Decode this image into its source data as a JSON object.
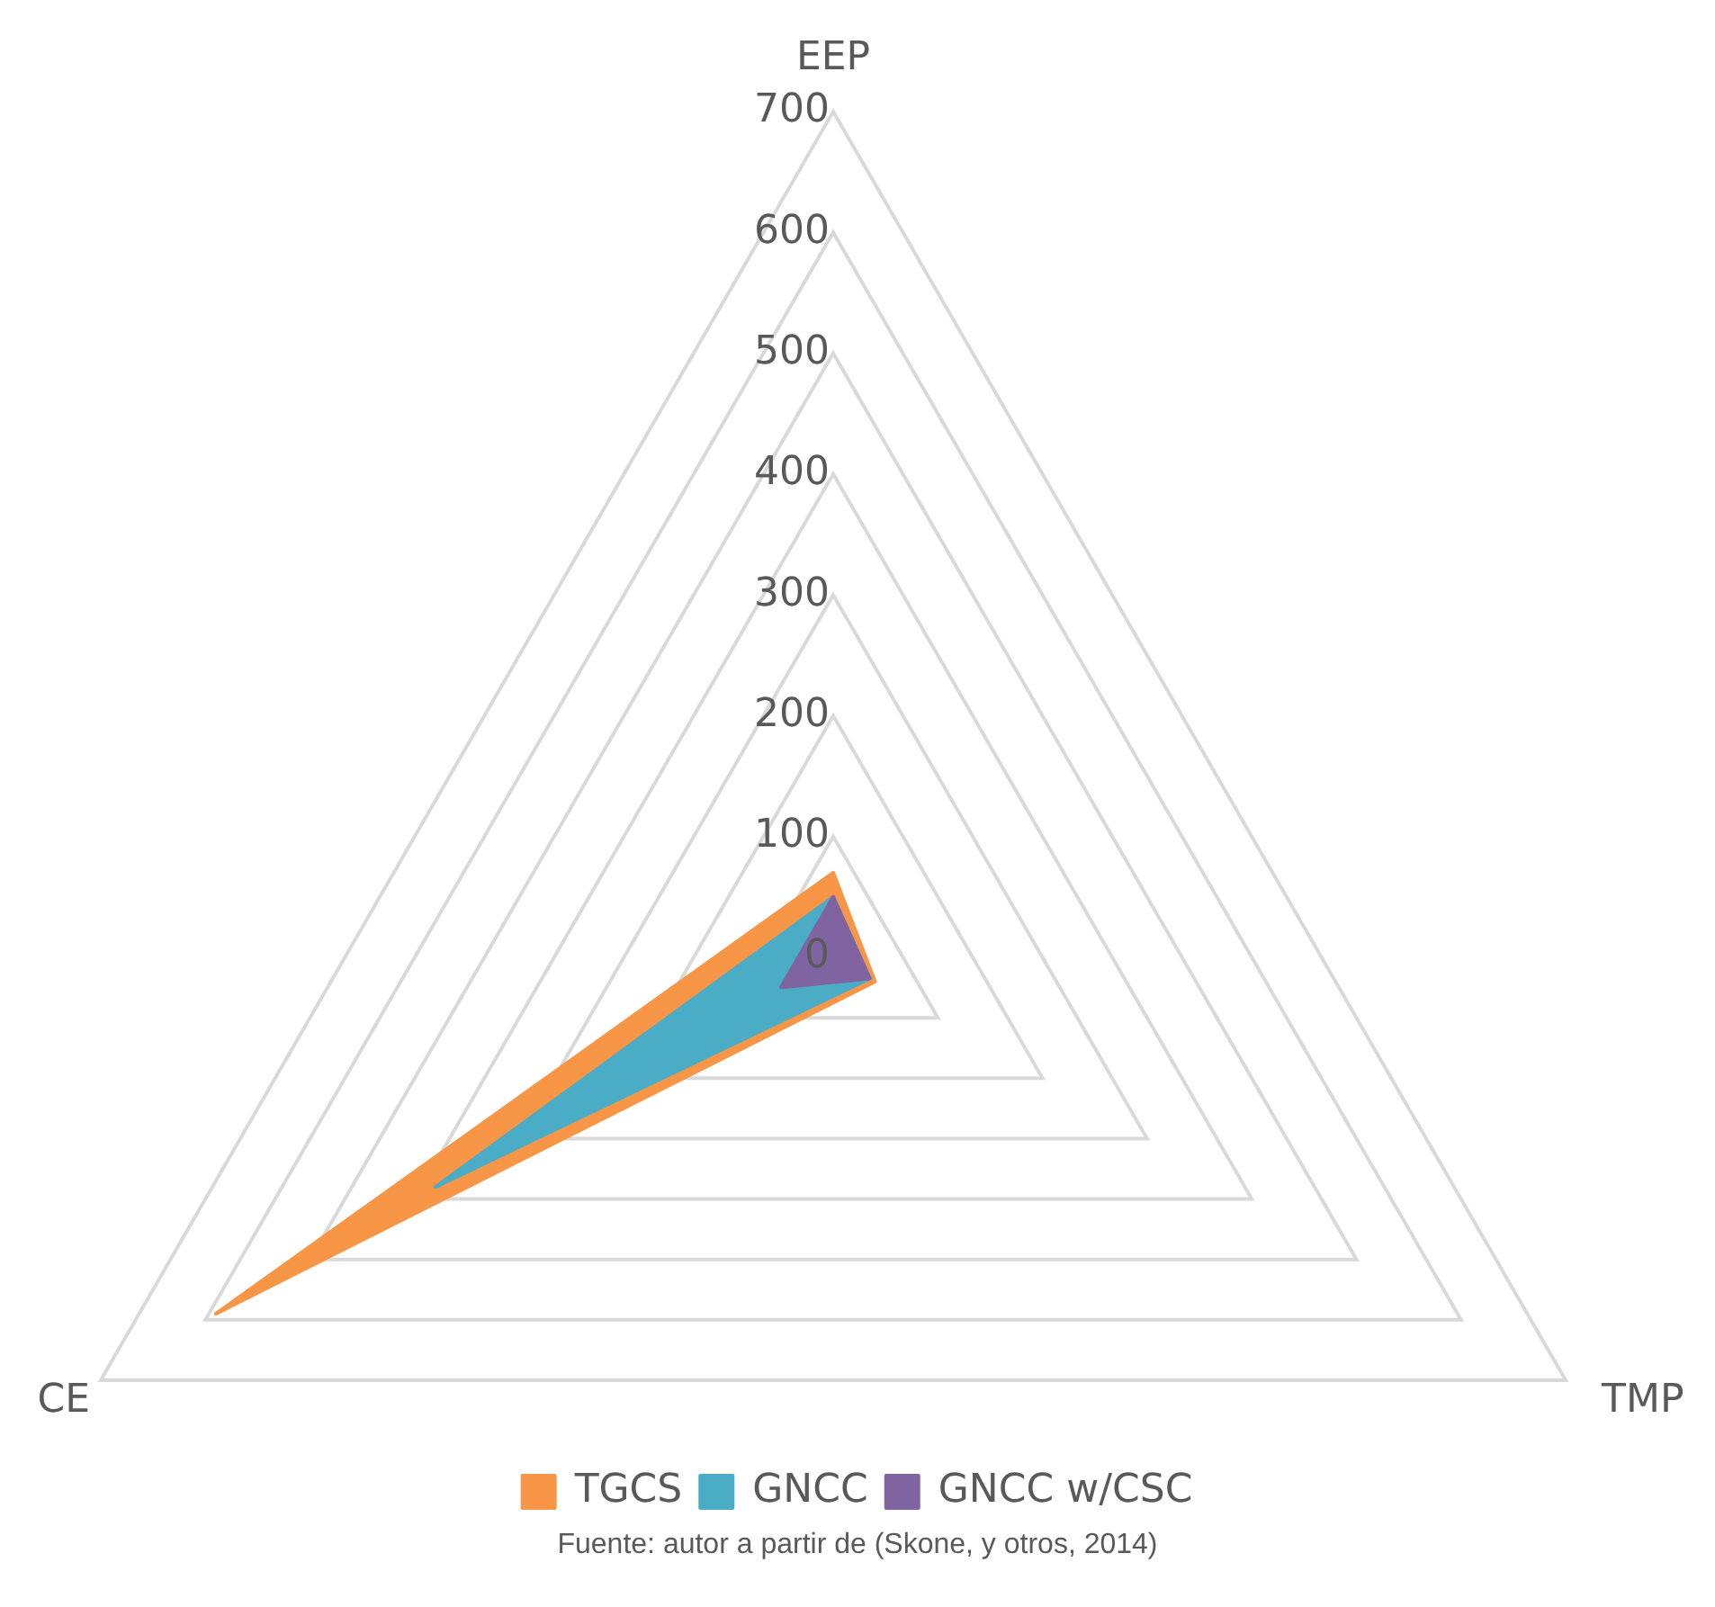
{
  "chart_data": {
    "type": "radar",
    "categories": [
      "EEP",
      "TMP",
      "CE"
    ],
    "series": [
      {
        "name": "TGCS",
        "color": "#f79646",
        "values": [
          70,
          40,
          590
        ]
      },
      {
        "name": "GNCC",
        "color": "#4bacc6",
        "values": [
          50,
          35,
          380
        ]
      },
      {
        "name": "GNCC w/CSC",
        "color": "#8064a2",
        "values": [
          50,
          35,
          50
        ]
      }
    ],
    "ylim": [
      0,
      700
    ],
    "yticks": [
      0,
      100,
      200,
      300,
      400,
      500,
      600,
      700
    ],
    "grid": true,
    "legend": "bottom",
    "marker": "none",
    "annotations": [
      "Fuente: autor a partir de (Skone, y otros, 2014)"
    ]
  }
}
